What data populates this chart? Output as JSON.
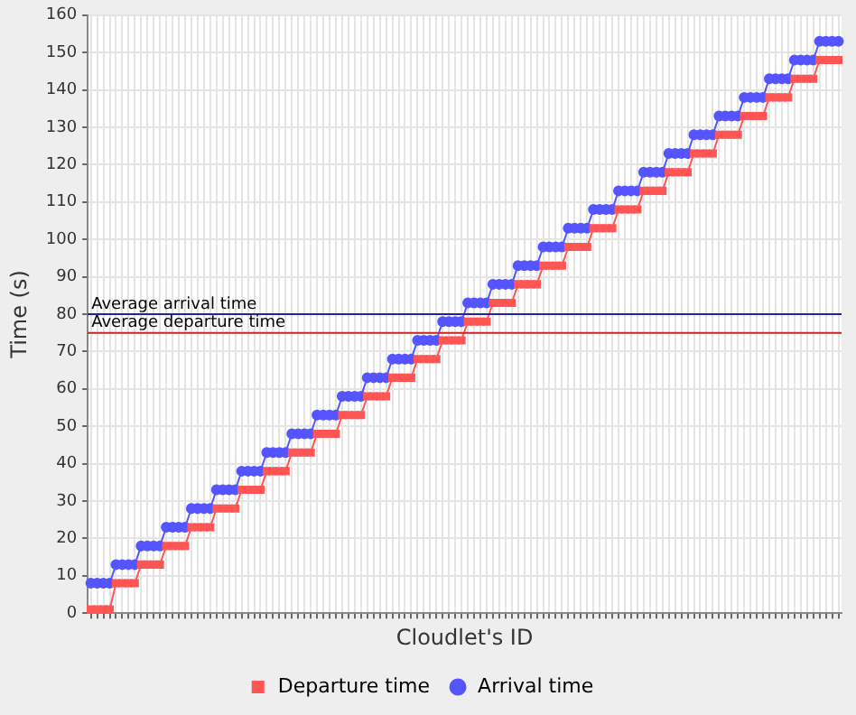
{
  "chart_data": {
    "type": "line",
    "xlabel": "Cloudlet's ID",
    "ylabel": "Time (s)",
    "categories": [
      null,
      null,
      null,
      null,
      null,
      null,
      null,
      null,
      null,
      null,
      null,
      null,
      null,
      null,
      null,
      null,
      null,
      null,
      null,
      null,
      null,
      null,
      null,
      null,
      null,
      null,
      null,
      null,
      null,
      null,
      null,
      null,
      null,
      null,
      null,
      null,
      null,
      null,
      null,
      null,
      null,
      null,
      null,
      null,
      null,
      null,
      null,
      null,
      null,
      null,
      null,
      null,
      null,
      null,
      null,
      null,
      null,
      null,
      null,
      null,
      null,
      null,
      null,
      null,
      null,
      null,
      null,
      null,
      null,
      null,
      null,
      null,
      null,
      null,
      null,
      null,
      null,
      null,
      null,
      null,
      null,
      null,
      null,
      null,
      null,
      null,
      null,
      null,
      null,
      null,
      null,
      null,
      null,
      null,
      null,
      null,
      null,
      null,
      null,
      null,
      null,
      null,
      null,
      null,
      null,
      null,
      null,
      null,
      null,
      null,
      null,
      null,
      null,
      null,
      null,
      null,
      null,
      null,
      null,
      null
    ],
    "series": [
      {
        "name": "Departure time",
        "color": "#ff5555",
        "marker": "square",
        "values": [
          1,
          1,
          1,
          1,
          8,
          8,
          8,
          8,
          13,
          13,
          13,
          13,
          18,
          18,
          18,
          18,
          23,
          23,
          23,
          23,
          28,
          28,
          28,
          28,
          33,
          33,
          33,
          33,
          38,
          38,
          38,
          38,
          43,
          43,
          43,
          43,
          48,
          48,
          48,
          48,
          53,
          53,
          53,
          53,
          58,
          58,
          58,
          58,
          63,
          63,
          63,
          63,
          68,
          68,
          68,
          68,
          73,
          73,
          73,
          73,
          78,
          78,
          78,
          78,
          83,
          83,
          83,
          83,
          88,
          88,
          88,
          88,
          93,
          93,
          93,
          93,
          98,
          98,
          98,
          98,
          103,
          103,
          103,
          103,
          108,
          108,
          108,
          108,
          113,
          113,
          113,
          113,
          118,
          118,
          118,
          118,
          123,
          123,
          123,
          123,
          128,
          128,
          128,
          128,
          133,
          133,
          133,
          133,
          138,
          138,
          138,
          138,
          143,
          143,
          143,
          143,
          148,
          148,
          148,
          148
        ]
      },
      {
        "name": "Arrival time",
        "color": "#5555ff",
        "marker": "circle",
        "values": [
          8,
          8,
          8,
          8,
          13,
          13,
          13,
          13,
          18,
          18,
          18,
          18,
          23,
          23,
          23,
          23,
          28,
          28,
          28,
          28,
          33,
          33,
          33,
          33,
          38,
          38,
          38,
          38,
          43,
          43,
          43,
          43,
          48,
          48,
          48,
          48,
          53,
          53,
          53,
          53,
          58,
          58,
          58,
          58,
          63,
          63,
          63,
          63,
          68,
          68,
          68,
          68,
          73,
          73,
          73,
          73,
          78,
          78,
          78,
          78,
          83,
          83,
          83,
          83,
          88,
          88,
          88,
          88,
          93,
          93,
          93,
          93,
          98,
          98,
          98,
          98,
          103,
          103,
          103,
          103,
          108,
          108,
          108,
          108,
          113,
          113,
          113,
          113,
          118,
          118,
          118,
          118,
          123,
          123,
          123,
          123,
          128,
          128,
          128,
          128,
          133,
          133,
          133,
          133,
          138,
          138,
          138,
          138,
          143,
          143,
          143,
          143,
          148,
          148,
          148,
          148,
          153,
          153,
          153,
          153
        ]
      }
    ],
    "ylim": [
      0,
      160
    ],
    "yticks": [
      0,
      10,
      20,
      30,
      40,
      50,
      60,
      70,
      80,
      90,
      100,
      110,
      120,
      130,
      140,
      150,
      160
    ],
    "ref_lines": [
      {
        "axis": "y",
        "value": 80,
        "label": "Average arrival time",
        "color": "#2222aa"
      },
      {
        "axis": "y",
        "value": 75,
        "label": "Average departure time",
        "color": "#cc2222"
      }
    ],
    "grid": true,
    "legend": "bottom",
    "tick_labels": "y"
  }
}
